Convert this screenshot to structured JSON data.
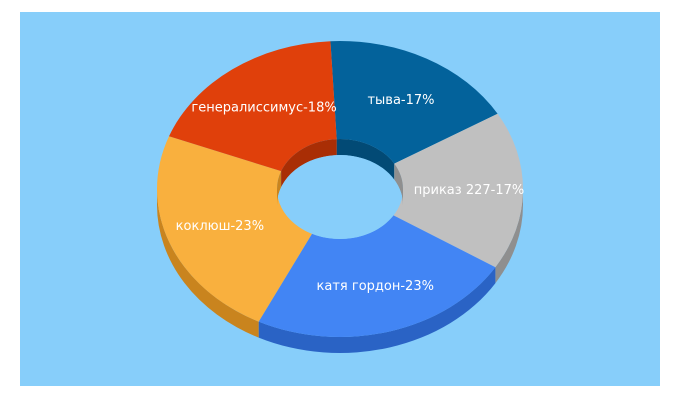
{
  "chart_data": {
    "type": "pie",
    "variant": "donut-3d",
    "slices": [
      {
        "label": "тыва-17%",
        "name": "тыва",
        "value": 17,
        "color": "#03629b",
        "side_color": "#024a75"
      },
      {
        "label": "приказ 227-17%",
        "name": "приказ 227",
        "value": 17,
        "color": "#c0c0c0",
        "side_color": "#8f8f8f"
      },
      {
        "label": "катя гордон-23%",
        "name": "катя гордон",
        "value": 23,
        "color": "#4285f4",
        "side_color": "#2a63c5"
      },
      {
        "label": "коклюш-23%",
        "name": "коклюш",
        "value": 23,
        "color": "#f9b03e",
        "side_color": "#c9841e"
      },
      {
        "label": "генералиссимус-18%",
        "name": "генералиссимус",
        "value": 18,
        "color": "#e0400b",
        "side_color": "#a92e05"
      }
    ],
    "background": "#87cefa"
  }
}
